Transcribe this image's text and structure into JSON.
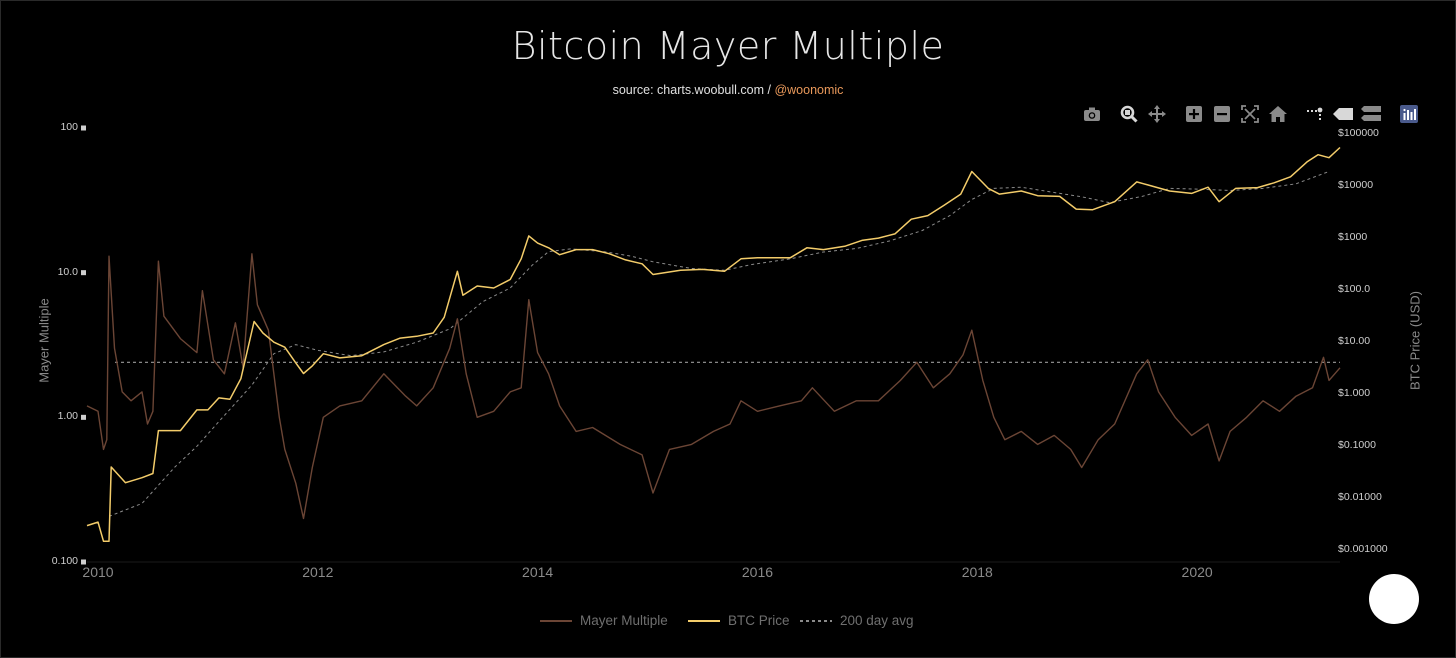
{
  "title": "Bitcoin Mayer Multiple",
  "subtitle": {
    "prefix": "source: charts.woobull.com / ",
    "handle": "@woonomic"
  },
  "modebar": [
    "camera-icon",
    "zoom-icon",
    "pan-icon",
    "zoom-in-icon",
    "zoom-out-icon",
    "autoscale-icon",
    "reset-axes-icon",
    "spike-lines-icon",
    "hover-closest-icon",
    "hover-compare-icon",
    "plotly-logo-icon"
  ],
  "colors": {
    "background": "#000000",
    "mayer": "#6b4535",
    "price": "#f3cc6a",
    "avg": "#8a8a8a",
    "threshold": "#9a9a9a"
  },
  "chart_data": {
    "type": "line",
    "title": "Bitcoin Mayer Multiple",
    "xlabel": "",
    "x_ticks": [
      "2010",
      "2012",
      "2014",
      "2016",
      "2018",
      "2020"
    ],
    "x_tick_values": [
      2010,
      2012,
      2014,
      2016,
      2018,
      2020
    ],
    "xlim": [
      2009.9,
      2021.3
    ],
    "y_left": {
      "label": "Mayer Multiple",
      "scale": "log",
      "ylim": [
        0.1,
        100
      ],
      "ticks": [
        "100",
        "10.0",
        "1.00",
        "0.100"
      ],
      "tick_values": [
        100,
        10,
        1,
        0.1
      ]
    },
    "y_right": {
      "label": "BTC Price (USD)",
      "scale": "log",
      "ylim": [
        0.0006,
        130000
      ],
      "ticks": [
        "$100000",
        "$10000",
        "$1000",
        "$100.0",
        "$10.00",
        "$1.000",
        "$0.1000",
        "$0.01000",
        "$0.001000"
      ],
      "tick_values": [
        100000,
        10000,
        1000,
        100,
        10,
        1,
        0.1,
        0.01,
        0.001
      ]
    },
    "threshold": {
      "value": 2.4,
      "axis": "left",
      "style": "dashed"
    },
    "legend": [
      "Mayer Multiple",
      "BTC Price",
      "200 day avg"
    ],
    "series": [
      {
        "name": "Mayer Multiple",
        "axis": "left",
        "points": [
          [
            2009.9,
            1.2
          ],
          [
            2010.0,
            1.1
          ],
          [
            2010.05,
            0.6
          ],
          [
            2010.08,
            0.7
          ],
          [
            2010.1,
            13.0
          ],
          [
            2010.15,
            3.0
          ],
          [
            2010.22,
            1.5
          ],
          [
            2010.3,
            1.3
          ],
          [
            2010.4,
            1.5
          ],
          [
            2010.45,
            0.9
          ],
          [
            2010.5,
            1.1
          ],
          [
            2010.55,
            12.0
          ],
          [
            2010.6,
            5.0
          ],
          [
            2010.75,
            3.5
          ],
          [
            2010.9,
            2.8
          ],
          [
            2010.95,
            7.5
          ],
          [
            2011.05,
            2.5
          ],
          [
            2011.15,
            2.0
          ],
          [
            2011.25,
            4.5
          ],
          [
            2011.32,
            2.2
          ],
          [
            2011.4,
            13.5
          ],
          [
            2011.45,
            6.0
          ],
          [
            2011.55,
            4.0
          ],
          [
            2011.65,
            1.0
          ],
          [
            2011.7,
            0.6
          ],
          [
            2011.8,
            0.35
          ],
          [
            2011.87,
            0.2
          ],
          [
            2011.95,
            0.45
          ],
          [
            2012.05,
            1.0
          ],
          [
            2012.2,
            1.2
          ],
          [
            2012.4,
            1.3
          ],
          [
            2012.6,
            2.0
          ],
          [
            2012.8,
            1.4
          ],
          [
            2012.9,
            1.2
          ],
          [
            2013.05,
            1.6
          ],
          [
            2013.2,
            3.0
          ],
          [
            2013.27,
            4.8
          ],
          [
            2013.35,
            2.0
          ],
          [
            2013.45,
            1.0
          ],
          [
            2013.6,
            1.1
          ],
          [
            2013.75,
            1.5
          ],
          [
            2013.85,
            1.6
          ],
          [
            2013.92,
            6.5
          ],
          [
            2014.0,
            2.8
          ],
          [
            2014.1,
            2.0
          ],
          [
            2014.2,
            1.2
          ],
          [
            2014.35,
            0.8
          ],
          [
            2014.5,
            0.85
          ],
          [
            2014.75,
            0.65
          ],
          [
            2014.95,
            0.55
          ],
          [
            2015.05,
            0.3
          ],
          [
            2015.2,
            0.6
          ],
          [
            2015.4,
            0.65
          ],
          [
            2015.6,
            0.8
          ],
          [
            2015.75,
            0.9
          ],
          [
            2015.85,
            1.3
          ],
          [
            2016.0,
            1.1
          ],
          [
            2016.2,
            1.2
          ],
          [
            2016.4,
            1.3
          ],
          [
            2016.5,
            1.6
          ],
          [
            2016.7,
            1.1
          ],
          [
            2016.9,
            1.3
          ],
          [
            2017.1,
            1.3
          ],
          [
            2017.3,
            1.8
          ],
          [
            2017.45,
            2.4
          ],
          [
            2017.6,
            1.6
          ],
          [
            2017.75,
            2.0
          ],
          [
            2017.87,
            2.7
          ],
          [
            2017.95,
            4.0
          ],
          [
            2018.05,
            1.8
          ],
          [
            2018.15,
            1.0
          ],
          [
            2018.25,
            0.7
          ],
          [
            2018.4,
            0.8
          ],
          [
            2018.55,
            0.65
          ],
          [
            2018.7,
            0.75
          ],
          [
            2018.85,
            0.6
          ],
          [
            2018.95,
            0.45
          ],
          [
            2019.1,
            0.7
          ],
          [
            2019.25,
            0.9
          ],
          [
            2019.45,
            2.0
          ],
          [
            2019.55,
            2.5
          ],
          [
            2019.65,
            1.5
          ],
          [
            2019.8,
            1.0
          ],
          [
            2019.95,
            0.75
          ],
          [
            2020.1,
            0.9
          ],
          [
            2020.2,
            0.5
          ],
          [
            2020.3,
            0.8
          ],
          [
            2020.45,
            1.0
          ],
          [
            2020.6,
            1.3
          ],
          [
            2020.75,
            1.1
          ],
          [
            2020.9,
            1.4
          ],
          [
            2021.05,
            1.6
          ],
          [
            2021.15,
            2.6
          ],
          [
            2021.2,
            1.8
          ],
          [
            2021.3,
            2.2
          ]
        ]
      },
      {
        "name": "BTC Price",
        "axis": "right",
        "points": [
          [
            2009.9,
            0.003
          ],
          [
            2010.0,
            0.0035
          ],
          [
            2010.05,
            0.0015
          ],
          [
            2010.1,
            0.0015
          ],
          [
            2010.12,
            0.04
          ],
          [
            2010.25,
            0.02
          ],
          [
            2010.4,
            0.025
          ],
          [
            2010.5,
            0.03
          ],
          [
            2010.55,
            0.2
          ],
          [
            2010.75,
            0.2
          ],
          [
            2010.9,
            0.5
          ],
          [
            2011.0,
            0.5
          ],
          [
            2011.1,
            0.85
          ],
          [
            2011.2,
            0.8
          ],
          [
            2011.3,
            2.0
          ],
          [
            2011.42,
            25.0
          ],
          [
            2011.5,
            15.0
          ],
          [
            2011.6,
            10.0
          ],
          [
            2011.7,
            8.0
          ],
          [
            2011.8,
            4.0
          ],
          [
            2011.87,
            2.5
          ],
          [
            2011.95,
            3.5
          ],
          [
            2012.05,
            6.0
          ],
          [
            2012.2,
            5.0
          ],
          [
            2012.4,
            5.5
          ],
          [
            2012.6,
            9.0
          ],
          [
            2012.75,
            12.0
          ],
          [
            2012.9,
            13.0
          ],
          [
            2013.05,
            15.0
          ],
          [
            2013.15,
            30.0
          ],
          [
            2013.27,
            230.0
          ],
          [
            2013.32,
            80.0
          ],
          [
            2013.45,
            120.0
          ],
          [
            2013.6,
            110.0
          ],
          [
            2013.75,
            160.0
          ],
          [
            2013.85,
            400.0
          ],
          [
            2013.92,
            1100.0
          ],
          [
            2014.0,
            800.0
          ],
          [
            2014.1,
            650.0
          ],
          [
            2014.2,
            480.0
          ],
          [
            2014.35,
            600.0
          ],
          [
            2014.5,
            600.0
          ],
          [
            2014.65,
            500.0
          ],
          [
            2014.8,
            380.0
          ],
          [
            2014.95,
            320.0
          ],
          [
            2015.05,
            200.0
          ],
          [
            2015.3,
            240.0
          ],
          [
            2015.5,
            250.0
          ],
          [
            2015.7,
            230.0
          ],
          [
            2015.85,
            400.0
          ],
          [
            2016.0,
            420.0
          ],
          [
            2016.3,
            420.0
          ],
          [
            2016.45,
            650.0
          ],
          [
            2016.6,
            600.0
          ],
          [
            2016.8,
            700.0
          ],
          [
            2016.95,
            900.0
          ],
          [
            2017.1,
            1000.0
          ],
          [
            2017.25,
            1200.0
          ],
          [
            2017.4,
            2300.0
          ],
          [
            2017.55,
            2700.0
          ],
          [
            2017.7,
            4300.0
          ],
          [
            2017.85,
            7000.0
          ],
          [
            2017.95,
            19000.0
          ],
          [
            2018.1,
            9000.0
          ],
          [
            2018.2,
            7000.0
          ],
          [
            2018.4,
            8000.0
          ],
          [
            2018.55,
            6500.0
          ],
          [
            2018.75,
            6300.0
          ],
          [
            2018.9,
            3600.0
          ],
          [
            2019.05,
            3500.0
          ],
          [
            2019.25,
            5000.0
          ],
          [
            2019.45,
            12000.0
          ],
          [
            2019.55,
            10500.0
          ],
          [
            2019.75,
            8000.0
          ],
          [
            2019.95,
            7200.0
          ],
          [
            2020.1,
            9500.0
          ],
          [
            2020.2,
            5000.0
          ],
          [
            2020.35,
            9000.0
          ],
          [
            2020.55,
            9300.0
          ],
          [
            2020.7,
            11500.0
          ],
          [
            2020.85,
            15000.0
          ],
          [
            2021.0,
            29000.0
          ],
          [
            2021.1,
            40000.0
          ],
          [
            2021.2,
            35000.0
          ],
          [
            2021.3,
            55000.0
          ]
        ]
      },
      {
        "name": "200 day avg",
        "axis": "right",
        "points": [
          [
            2010.1,
            0.0045
          ],
          [
            2010.4,
            0.008
          ],
          [
            2010.7,
            0.04
          ],
          [
            2010.9,
            0.1
          ],
          [
            2011.1,
            0.3
          ],
          [
            2011.4,
            1.5
          ],
          [
            2011.6,
            6.0
          ],
          [
            2011.8,
            9.0
          ],
          [
            2012.0,
            7.0
          ],
          [
            2012.3,
            5.5
          ],
          [
            2012.6,
            6.5
          ],
          [
            2012.9,
            10.0
          ],
          [
            2013.2,
            18.0
          ],
          [
            2013.5,
            60.0
          ],
          [
            2013.75,
            110.0
          ],
          [
            2013.95,
            300.0
          ],
          [
            2014.1,
            550.0
          ],
          [
            2014.3,
            620.0
          ],
          [
            2014.6,
            550.0
          ],
          [
            2014.85,
            450.0
          ],
          [
            2015.05,
            350.0
          ],
          [
            2015.4,
            260.0
          ],
          [
            2015.7,
            240.0
          ],
          [
            2015.95,
            310.0
          ],
          [
            2016.3,
            400.0
          ],
          [
            2016.6,
            540.0
          ],
          [
            2016.9,
            630.0
          ],
          [
            2017.2,
            880.0
          ],
          [
            2017.5,
            1400.0
          ],
          [
            2017.75,
            2700.0
          ],
          [
            2017.95,
            5500.0
          ],
          [
            2018.15,
            9000.0
          ],
          [
            2018.4,
            9500.0
          ],
          [
            2018.7,
            7500.0
          ],
          [
            2018.95,
            6200.0
          ],
          [
            2019.2,
            4800.0
          ],
          [
            2019.5,
            6300.0
          ],
          [
            2019.75,
            9000.0
          ],
          [
            2020.0,
            8700.0
          ],
          [
            2020.3,
            8200.0
          ],
          [
            2020.6,
            9000.0
          ],
          [
            2020.9,
            11000.0
          ],
          [
            2021.2,
            19000.0
          ]
        ]
      }
    ]
  }
}
